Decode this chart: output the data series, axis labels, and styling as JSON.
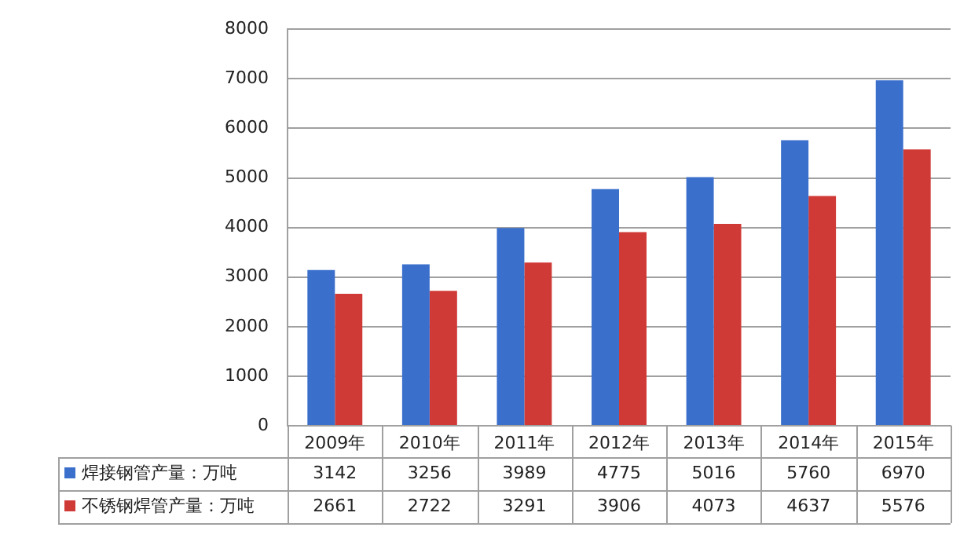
{
  "chart_data": {
    "type": "bar",
    "categories": [
      "2009年",
      "2010年",
      "2011年",
      "2012年",
      "2013年",
      "2014年",
      "2015年"
    ],
    "series": [
      {
        "name": "焊接钢管产量：万吨",
        "color": "#3a6fcc",
        "values": [
          3142,
          3256,
          3989,
          4775,
          5016,
          5760,
          6970
        ]
      },
      {
        "name": "不锈钢焊管产量：万吨",
        "color": "#d03a36",
        "values": [
          2661,
          2722,
          3291,
          3906,
          4073,
          4637,
          5576
        ]
      }
    ],
    "ylim": [
      0,
      8000
    ],
    "yticks": [
      0,
      1000,
      2000,
      3000,
      4000,
      5000,
      6000,
      7000,
      8000
    ],
    "grid": "y",
    "legend": "bottom",
    "data_labels": true
  }
}
